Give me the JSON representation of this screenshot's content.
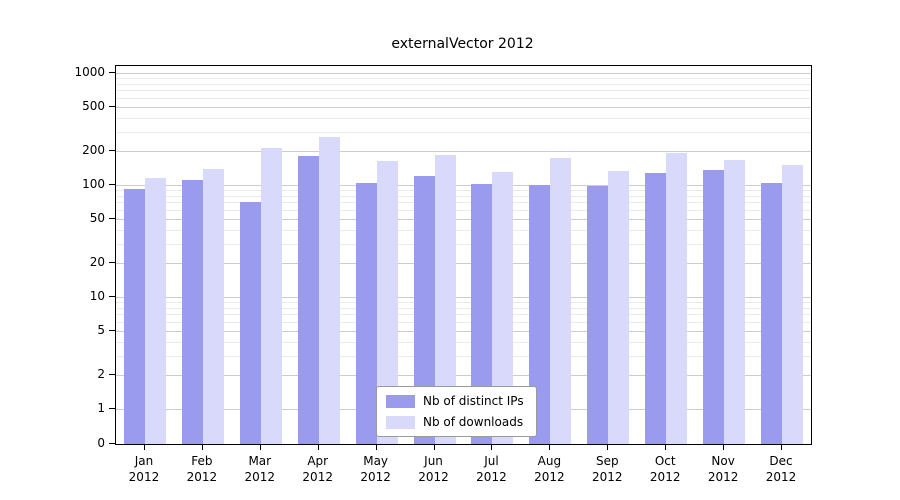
{
  "chart_data": {
    "type": "bar",
    "title": "externalVector 2012",
    "xlabel": "",
    "ylabel": "",
    "yscale": "symlog",
    "grid": true,
    "legend_position": "lower center inside",
    "yticks": [
      0,
      1,
      2,
      5,
      10,
      20,
      50,
      100,
      200,
      500,
      1000
    ],
    "ylim": [
      0,
      1100
    ],
    "categories": [
      "Jan 2012",
      "Feb 2012",
      "Mar 2012",
      "Apr 2012",
      "May 2012",
      "Jun 2012",
      "Jul 2012",
      "Aug 2012",
      "Sep 2012",
      "Oct 2012",
      "Nov 2012",
      "Dec 2012"
    ],
    "series": [
      {
        "name": "Nb of distinct IPs",
        "color": "#9a9aee",
        "values": [
          93,
          110,
          70,
          180,
          105,
          120,
          102,
          100,
          98,
          128,
          135,
          104
        ]
      },
      {
        "name": "Nb of downloads",
        "color": "#d9d9fb",
        "values": [
          115,
          140,
          215,
          270,
          165,
          185,
          130,
          175,
          132,
          192,
          168,
          150
        ]
      }
    ]
  }
}
